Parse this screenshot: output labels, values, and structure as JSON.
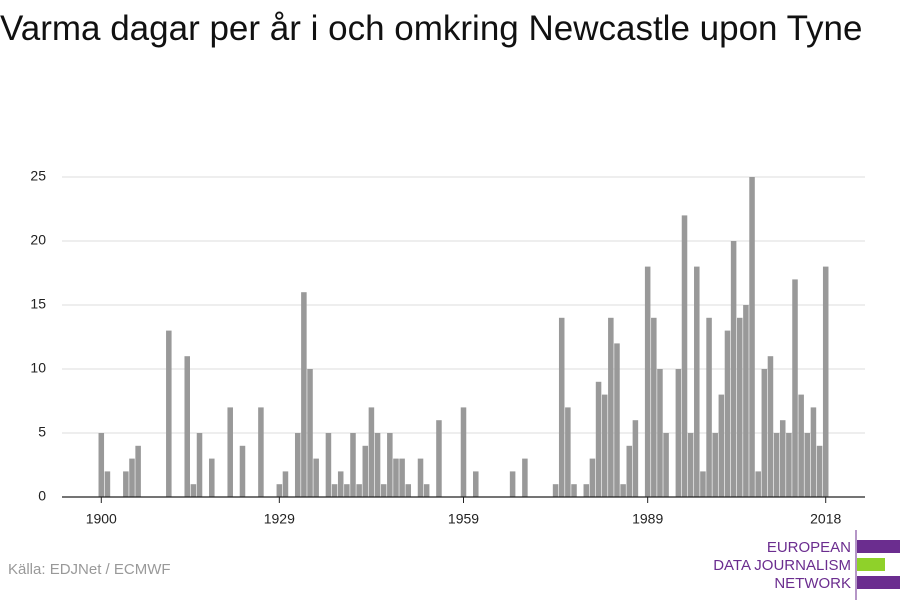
{
  "chart_data": {
    "type": "bar",
    "title": "Varma dagar per år i och omkring Newcastle upon Tyne",
    "source": "Källa: EDJNet / ECMWF",
    "logo": [
      "EUROPEAN",
      "DATA JOURNALISM",
      "NETWORK"
    ],
    "color": "#999999",
    "x": [
      1900,
      1901,
      1902,
      1903,
      1904,
      1905,
      1906,
      1907,
      1908,
      1909,
      1910,
      1911,
      1912,
      1913,
      1914,
      1915,
      1916,
      1917,
      1918,
      1919,
      1920,
      1921,
      1922,
      1923,
      1924,
      1925,
      1926,
      1927,
      1928,
      1929,
      1930,
      1931,
      1932,
      1933,
      1934,
      1935,
      1936,
      1937,
      1938,
      1939,
      1940,
      1941,
      1942,
      1943,
      1944,
      1945,
      1946,
      1947,
      1948,
      1949,
      1950,
      1951,
      1952,
      1953,
      1954,
      1955,
      1956,
      1957,
      1958,
      1959,
      1960,
      1961,
      1962,
      1963,
      1964,
      1965,
      1966,
      1967,
      1968,
      1969,
      1970,
      1971,
      1972,
      1973,
      1974,
      1975,
      1976,
      1977,
      1978,
      1979,
      1980,
      1981,
      1982,
      1983,
      1984,
      1985,
      1986,
      1987,
      1988,
      1989,
      1990,
      1991,
      1992,
      1993,
      1994,
      1995,
      1996,
      1997,
      1998,
      1999,
      2000,
      2001,
      2002,
      2003,
      2004,
      2005,
      2006,
      2007,
      2008,
      2009,
      2010,
      2011,
      2012,
      2013,
      2014,
      2015,
      2016,
      2017,
      2018
    ],
    "values": [
      5,
      2,
      0,
      0,
      2,
      3,
      4,
      0,
      0,
      0,
      0,
      13,
      0,
      0,
      11,
      1,
      5,
      0,
      3,
      0,
      0,
      7,
      0,
      4,
      0,
      0,
      7,
      0,
      0,
      1,
      2,
      0,
      5,
      16,
      10,
      3,
      0,
      5,
      1,
      2,
      1,
      5,
      1,
      4,
      7,
      5,
      1,
      5,
      3,
      3,
      1,
      0,
      3,
      1,
      0,
      6,
      0,
      0,
      0,
      7,
      0,
      2,
      0,
      0,
      0,
      0,
      0,
      2,
      0,
      3,
      0,
      0,
      0,
      0,
      1,
      14,
      7,
      1,
      0,
      1,
      3,
      9,
      8,
      14,
      12,
      1,
      4,
      6,
      0,
      18,
      14,
      10,
      5,
      0,
      10,
      22,
      5,
      18,
      2,
      14,
      5,
      8,
      13,
      20,
      14,
      15,
      25,
      2,
      10,
      11,
      5,
      6,
      5,
      17,
      8,
      5,
      7,
      4,
      18
    ],
    "xlim": [
      1893.6,
      2024.4
    ],
    "xticks": [
      1900,
      1929,
      1959,
      1989,
      2018
    ],
    "ylim": [
      0,
      25
    ],
    "yticks": [
      0,
      5,
      10,
      15,
      20,
      25
    ],
    "grid": true
  }
}
